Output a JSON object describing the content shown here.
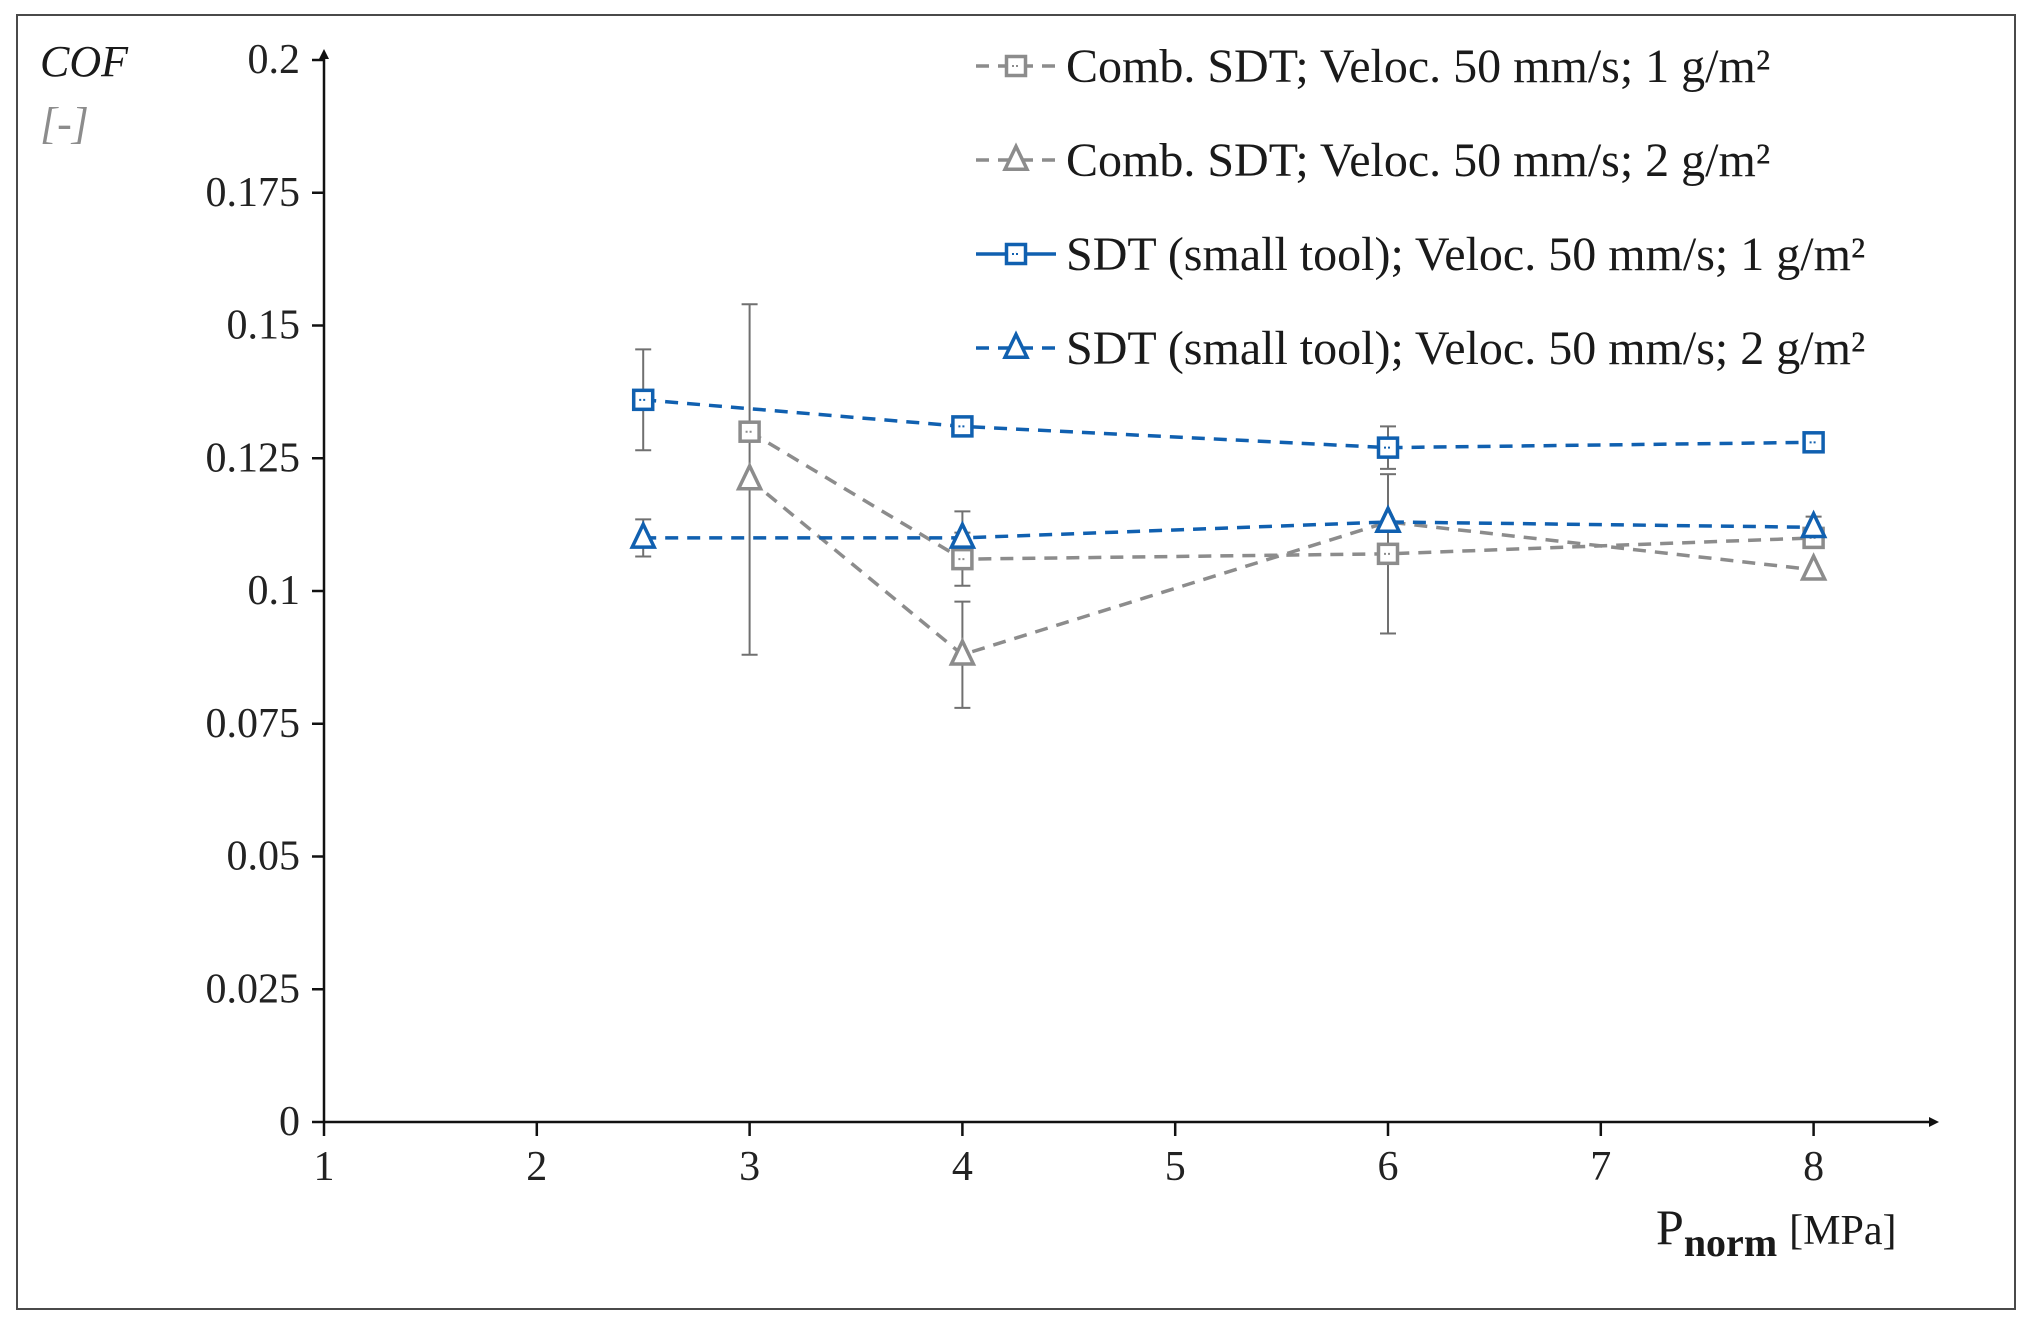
{
  "chart_data": {
    "type": "line",
    "title": "",
    "ylabel": "COF",
    "ylabel_unit": "[-]",
    "xlabel_main": "P",
    "xlabel_sub": "norm",
    "xlabel_unit": "[MPa]",
    "xlim": [
      1,
      8.5
    ],
    "ylim": [
      0,
      0.2
    ],
    "xticks": [
      1,
      2,
      3,
      4,
      5,
      6,
      7,
      8
    ],
    "xtick_labels": [
      "1",
      "2",
      "3",
      "4",
      "5",
      "6",
      "7",
      "8"
    ],
    "yticks": [
      0,
      0.025,
      0.05,
      0.075,
      0.1,
      0.125,
      0.15,
      0.175,
      0.2
    ],
    "ytick_labels": [
      "0",
      "0.025",
      "0.05",
      "0.075",
      "0.1",
      "0.125",
      "0.15",
      "0.175",
      "0.2"
    ],
    "grid": false,
    "legend_position": "top-right",
    "series": [
      {
        "name": "Comb. SDT; Veloc.  50 mm/s;  1 g/m²",
        "marker": "square",
        "color": "#8c8c8c",
        "x": [
          3,
          4,
          6,
          8
        ],
        "y": [
          0.13,
          0.106,
          0.107,
          0.11
        ],
        "err": [
          0.0,
          0.005,
          0.015,
          0.0
        ]
      },
      {
        "name": "Comb. SDT; Veloc.  50 mm/s;  2 g/m²",
        "marker": "triangle",
        "color": "#8c8c8c",
        "x": [
          3,
          4,
          6,
          8
        ],
        "y": [
          0.121,
          0.088,
          0.113,
          0.104
        ],
        "err": [
          0.033,
          0.01,
          0.0,
          0.0
        ]
      },
      {
        "name": "SDT (small tool); Veloc.  50 mm/s; 1 g/m²",
        "marker": "square",
        "color": "#1060b0",
        "x": [
          2.5,
          4,
          6,
          8
        ],
        "y": [
          0.136,
          0.131,
          0.127,
          0.128
        ],
        "err": [
          0.0095,
          0.0,
          0.004,
          0.0
        ]
      },
      {
        "name": "SDT (small tool); Veloc.  50 mm/s; 2 g/m²",
        "marker": "triangle",
        "color": "#1060b0",
        "x": [
          2.5,
          4,
          6,
          8
        ],
        "y": [
          0.11,
          0.11,
          0.113,
          0.112
        ],
        "err": [
          0.0035,
          0.005,
          0.0,
          0.002
        ]
      }
    ]
  }
}
